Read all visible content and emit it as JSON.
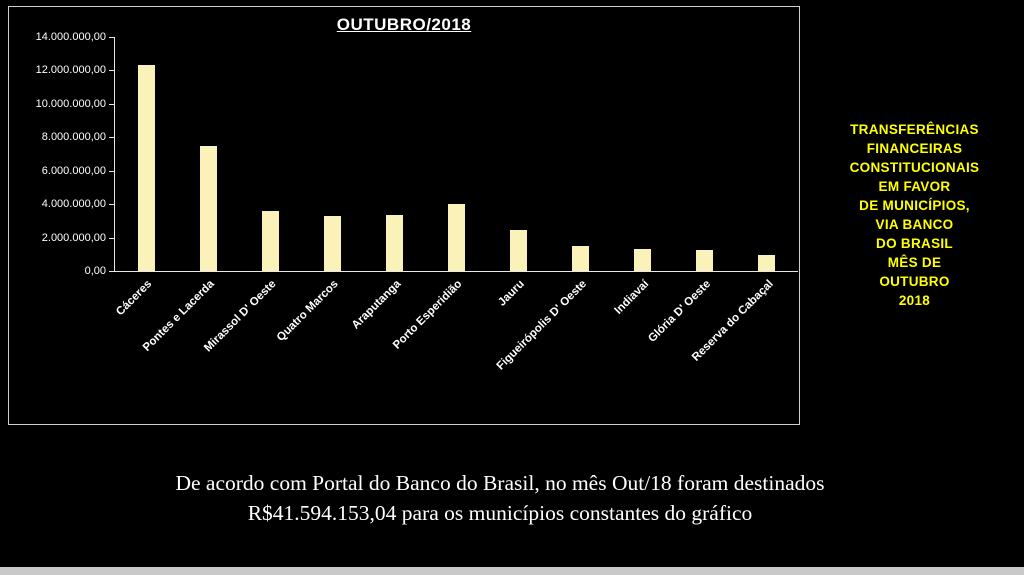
{
  "chart_data": {
    "type": "bar",
    "title": "OUTUBRO/2018",
    "categories": [
      "Cáceres",
      "Pontes e Lacerda",
      "Mirassol D' Oeste",
      "Quatro Marcos",
      "Araputanga",
      "Porto Esperidião",
      "Jauru",
      "Figueirópolis D' Oeste",
      "Indiavaí",
      "Glória D' Oeste",
      "Reserva do Cabaçal"
    ],
    "values": [
      12300000,
      7500000,
      3600000,
      3300000,
      3350000,
      4000000,
      2450000,
      1500000,
      1300000,
      1250000,
      950000
    ],
    "xlabel": "",
    "ylabel": "",
    "ylim": [
      0,
      14000000
    ],
    "ytick_step": 2000000,
    "ytick_labels": [
      "14.000.000,00",
      "12.000.000,00",
      "10.000.000,00",
      "8.000.000,00",
      "6.000.000,00",
      "4.000.000,00",
      "2.000.000,00",
      "0,00"
    ],
    "grid": false,
    "legend": false,
    "bar_color": "#FAF2B8",
    "axis_color": "#FFFFFF",
    "background_color": "#000000"
  },
  "side_note": {
    "color": "#FFFF00",
    "lines": [
      "TRANSFERÊNCIAS",
      "FINANCEIRAS",
      "CONSTITUCIONAIS",
      "EM FAVOR",
      "DE MUNICÍPIOS,",
      "VIA BANCO",
      "DO BRASIL",
      "MÊS DE",
      "OUTUBRO",
      "2018"
    ]
  },
  "caption": {
    "line1": "De acordo com Portal do Banco do Brasil, no mês Out/18 foram destinados",
    "line2": "R$41.594.153,04 para os municípios constantes do gráfico"
  }
}
